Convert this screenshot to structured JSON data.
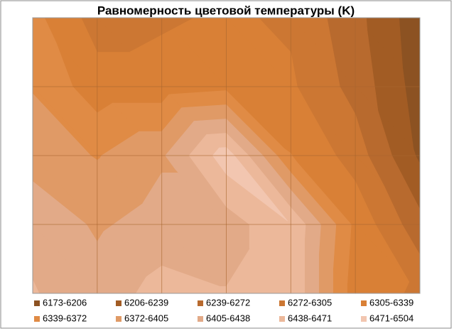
{
  "chart_data": {
    "type": "contour",
    "title": "Равномерность цветовой температуры (K)",
    "grid": true,
    "z": [
      [
        6350,
        6290,
        6300,
        6310,
        6300,
        6250,
        6185
      ],
      [
        6370,
        6320,
        6320,
        6330,
        6310,
        6260,
        6190
      ],
      [
        6390,
        6370,
        6400,
        6490,
        6340,
        6290,
        6200
      ],
      [
        6430,
        6400,
        6420,
        6420,
        6470,
        6330,
        6250
      ],
      [
        6440,
        6420,
        6450,
        6440,
        6470,
        6320,
        6300
      ]
    ],
    "bands": [
      {
        "name": "6173-6206",
        "from": 6173,
        "to": 6206,
        "color": "#8c5222"
      },
      {
        "name": "6206-6239",
        "from": 6206,
        "to": 6239,
        "color": "#a25c24"
      },
      {
        "name": "6239-6272",
        "from": 6239,
        "to": 6272,
        "color": "#b86a2e"
      },
      {
        "name": "6272-6305",
        "from": 6272,
        "to": 6305,
        "color": "#cc7733"
      },
      {
        "name": "6305-6339",
        "from": 6305,
        "to": 6339,
        "color": "#d98036"
      },
      {
        "name": "6339-6372",
        "from": 6339,
        "to": 6372,
        "color": "#e08b45"
      },
      {
        "name": "6372-6405",
        "from": 6372,
        "to": 6405,
        "color": "#e09a66"
      },
      {
        "name": "6405-6438",
        "from": 6405,
        "to": 6438,
        "color": "#e2aa88"
      },
      {
        "name": "6438-6471",
        "from": 6438,
        "to": 6471,
        "color": "#ecb89a"
      },
      {
        "name": "6471-6504",
        "from": 6471,
        "to": 6504,
        "color": "#f2c6b0"
      }
    ]
  }
}
